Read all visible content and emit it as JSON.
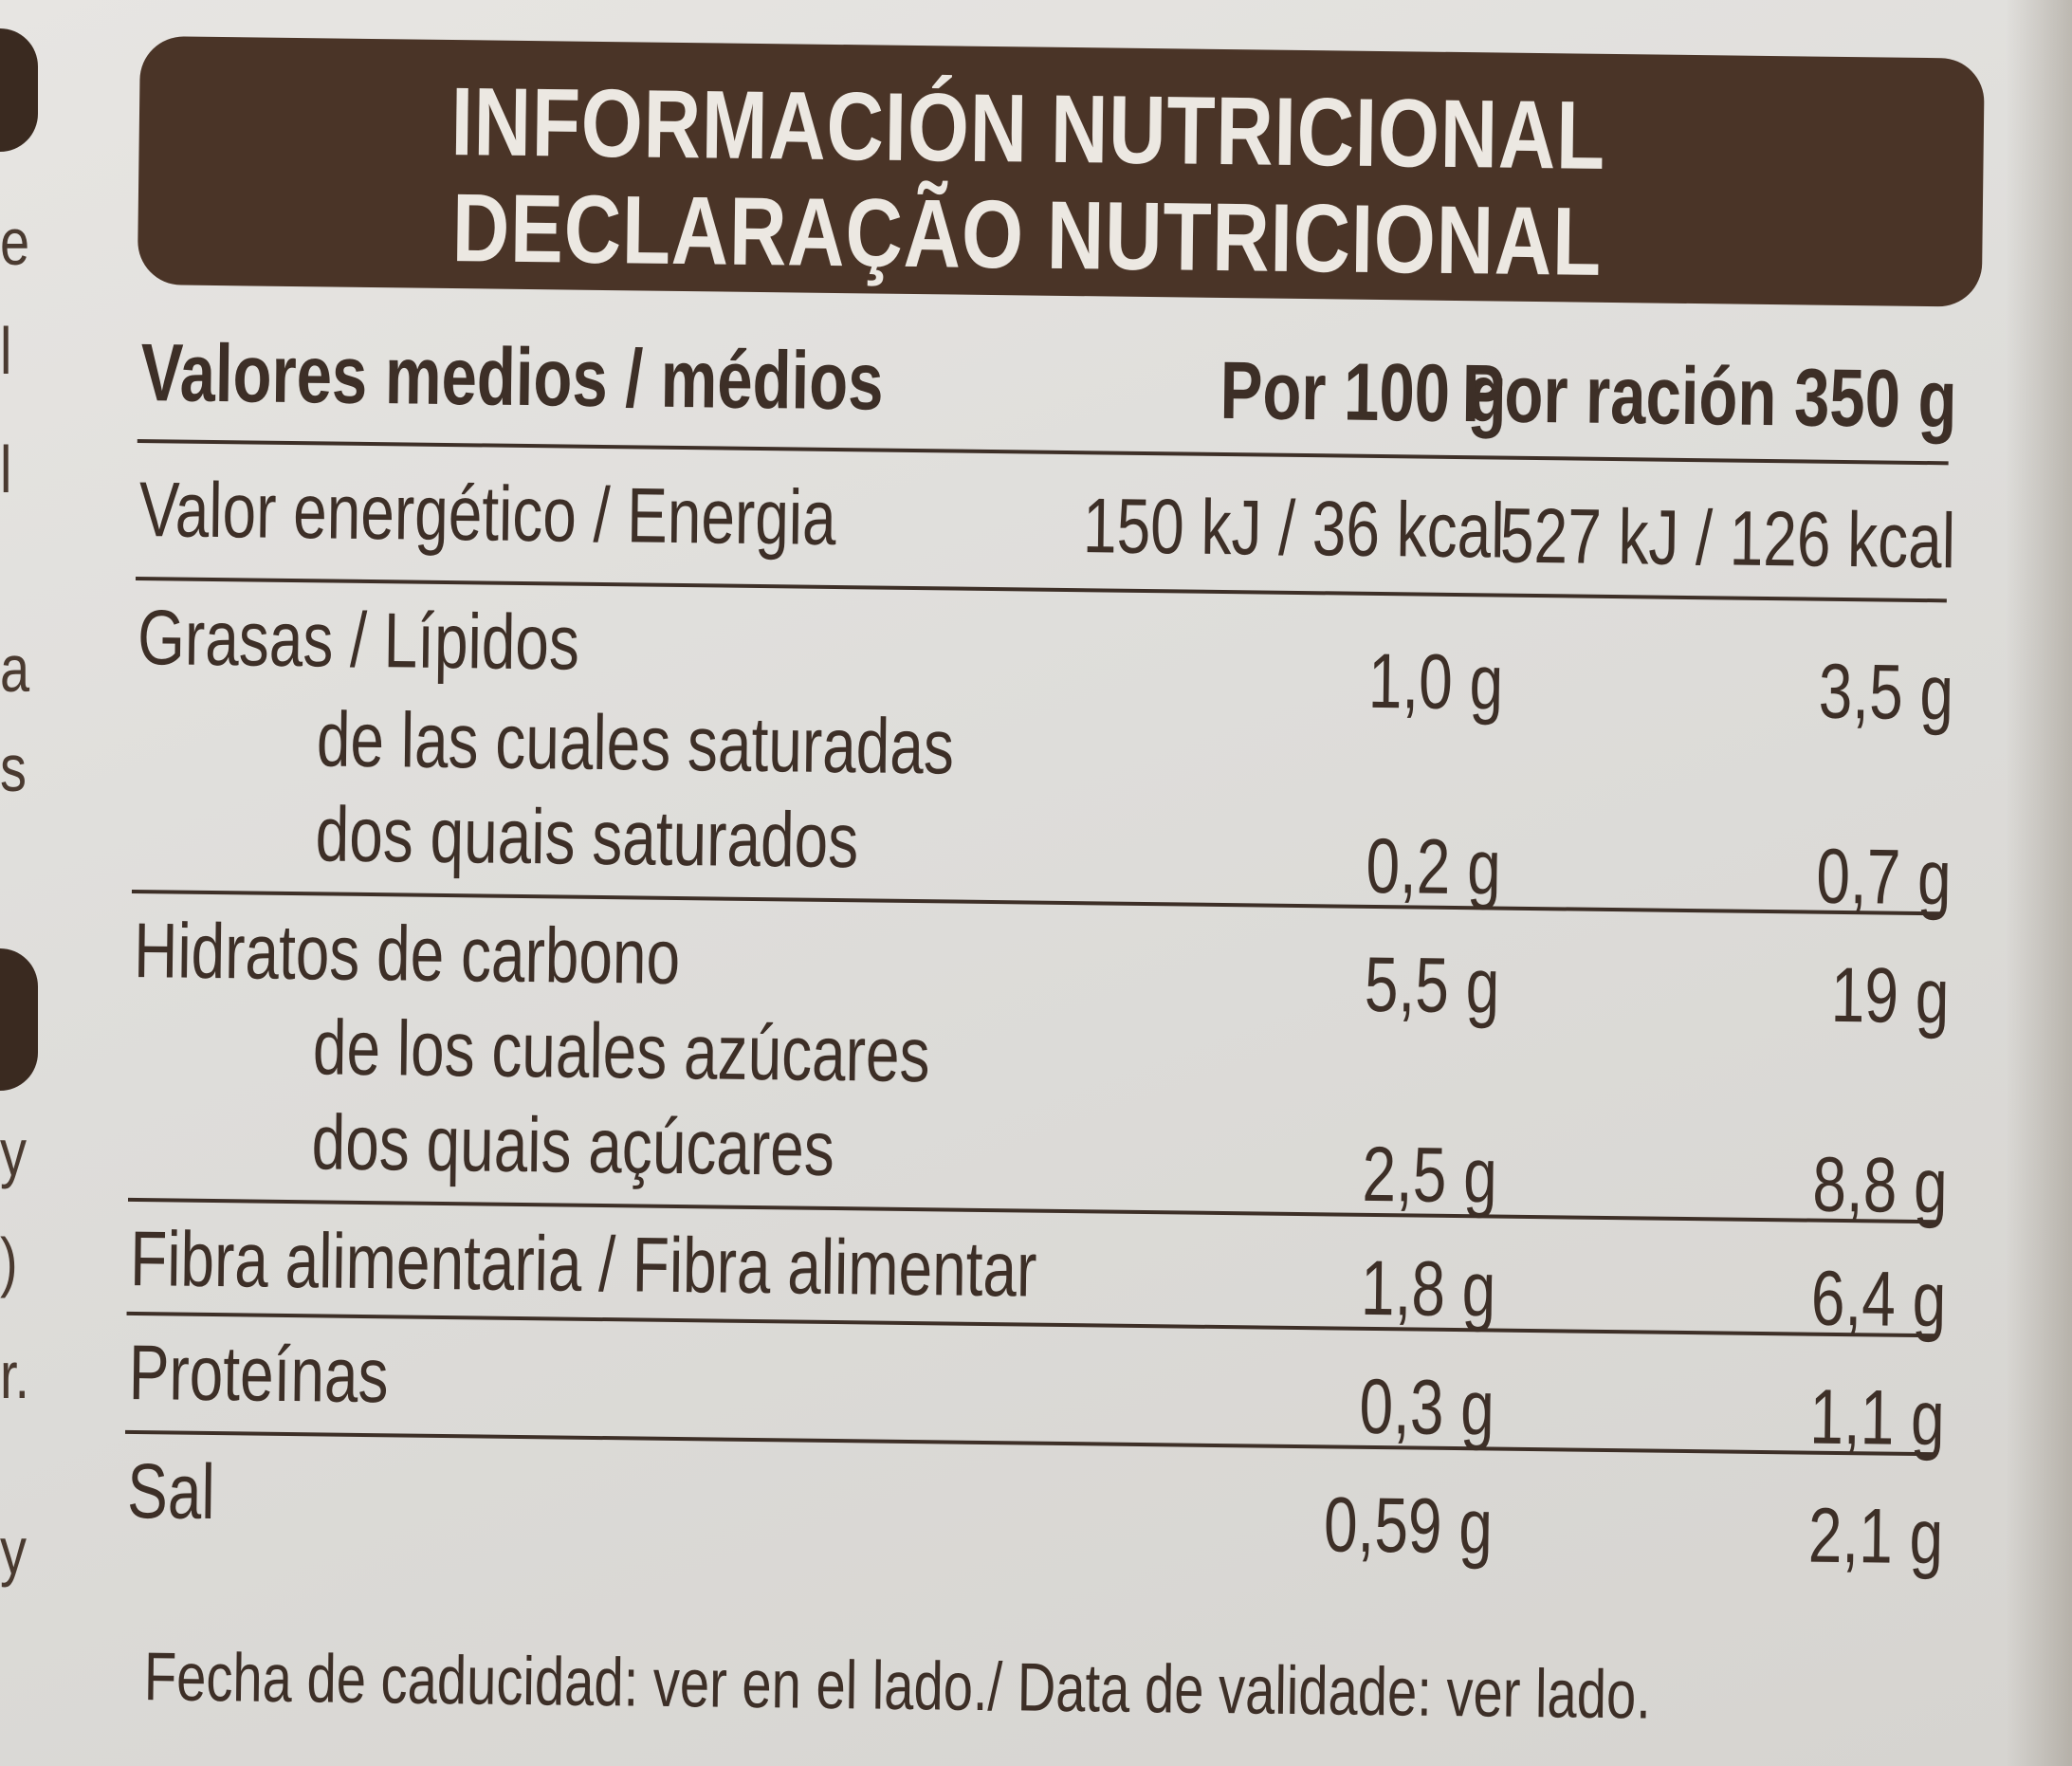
{
  "header": {
    "title_es": "INFORMACIÓN NUTRICIONAL",
    "title_pt": "DECLARAÇÃO NUTRICIONAL"
  },
  "columns": {
    "label": "Valores medios / médios",
    "per100": "Por 100 g",
    "perServing": "Por ración 350 g"
  },
  "rows": {
    "energy": {
      "label": "Valor energético / Energia",
      "per100": "150 kJ / 36 kcal",
      "perServing": "527 kJ / 126 kcal"
    },
    "fat": {
      "label": "Grasas / Lípidos",
      "per100": "1,0 g",
      "perServing": "3,5 g"
    },
    "saturated": {
      "label_es": "de las cuales saturadas",
      "label_pt": "dos quais saturados",
      "per100": "0,2 g",
      "perServing": "0,7 g"
    },
    "carbs": {
      "label": "Hidratos de carbono",
      "per100": "5,5 g",
      "perServing": "19 g"
    },
    "sugars": {
      "label_es": "de los cuales azúcares",
      "label_pt": "dos quais açúcares",
      "per100": "2,5 g",
      "perServing": "8,8 g"
    },
    "fibre": {
      "label": "Fibra alimentaria / Fibra alimentar",
      "per100": "1,8 g",
      "perServing": "6,4 g"
    },
    "protein": {
      "label": "Proteínas",
      "per100": "0,3 g",
      "perServing": "1,1 g"
    },
    "salt": {
      "label": "Sal",
      "per100": "0,59 g",
      "perServing": "2,1 g"
    }
  },
  "footer": "Fecha de caducidad: ver en el lado./ Data de validade: ver lado.",
  "edge_text": [
    "e",
    "l",
    "a",
    "s",
    "y",
    ")",
    "r.",
    "y"
  ],
  "colors": {
    "header_bg": "#4a3427",
    "header_text": "#ece8e2",
    "ink": "#3d2f27",
    "paper": "#e2e0dc"
  }
}
